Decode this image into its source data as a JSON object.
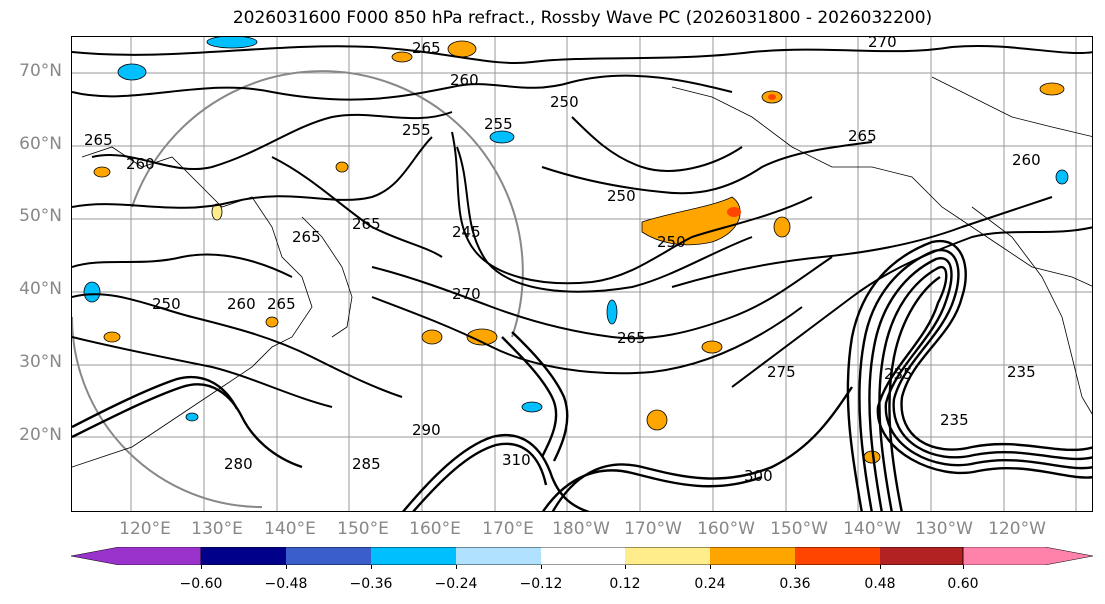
{
  "title": "2026031600 F000 850 hPa refract., Rossby Wave PC (2026031800 - 2026032200)",
  "lat_labels": [
    "70°N",
    "60°N",
    "50°N",
    "40°N",
    "30°N",
    "20°N"
  ],
  "lon_labels": [
    "120°E",
    "130°E",
    "140°E",
    "150°E",
    "160°E",
    "170°E",
    "180°W",
    "170°W",
    "160°W",
    "150°W",
    "140°W",
    "130°W",
    "120°W"
  ],
  "contour_labels": [
    "265",
    "260",
    "255",
    "255",
    "250",
    "270",
    "265",
    "260",
    "265",
    "260",
    "265",
    "250",
    "250",
    "245",
    "265",
    "260",
    "265",
    "250",
    "270",
    "265",
    "275",
    "235",
    "235",
    "235",
    "280",
    "285",
    "290",
    "300",
    "310"
  ],
  "colorbar": {
    "ticks": [
      "−0.60",
      "−0.48",
      "−0.36",
      "−0.24",
      "−0.12",
      "0.12",
      "0.24",
      "0.36",
      "0.48",
      "0.60"
    ],
    "colors": [
      "#9933cc",
      "#00008b",
      "#3a5fcd",
      "#00bfff",
      "#b0e2ff",
      "#ffffff",
      "#ffec8b",
      "#ffa500",
      "#ff4500",
      "#b22222",
      "#ff82ab"
    ]
  }
}
